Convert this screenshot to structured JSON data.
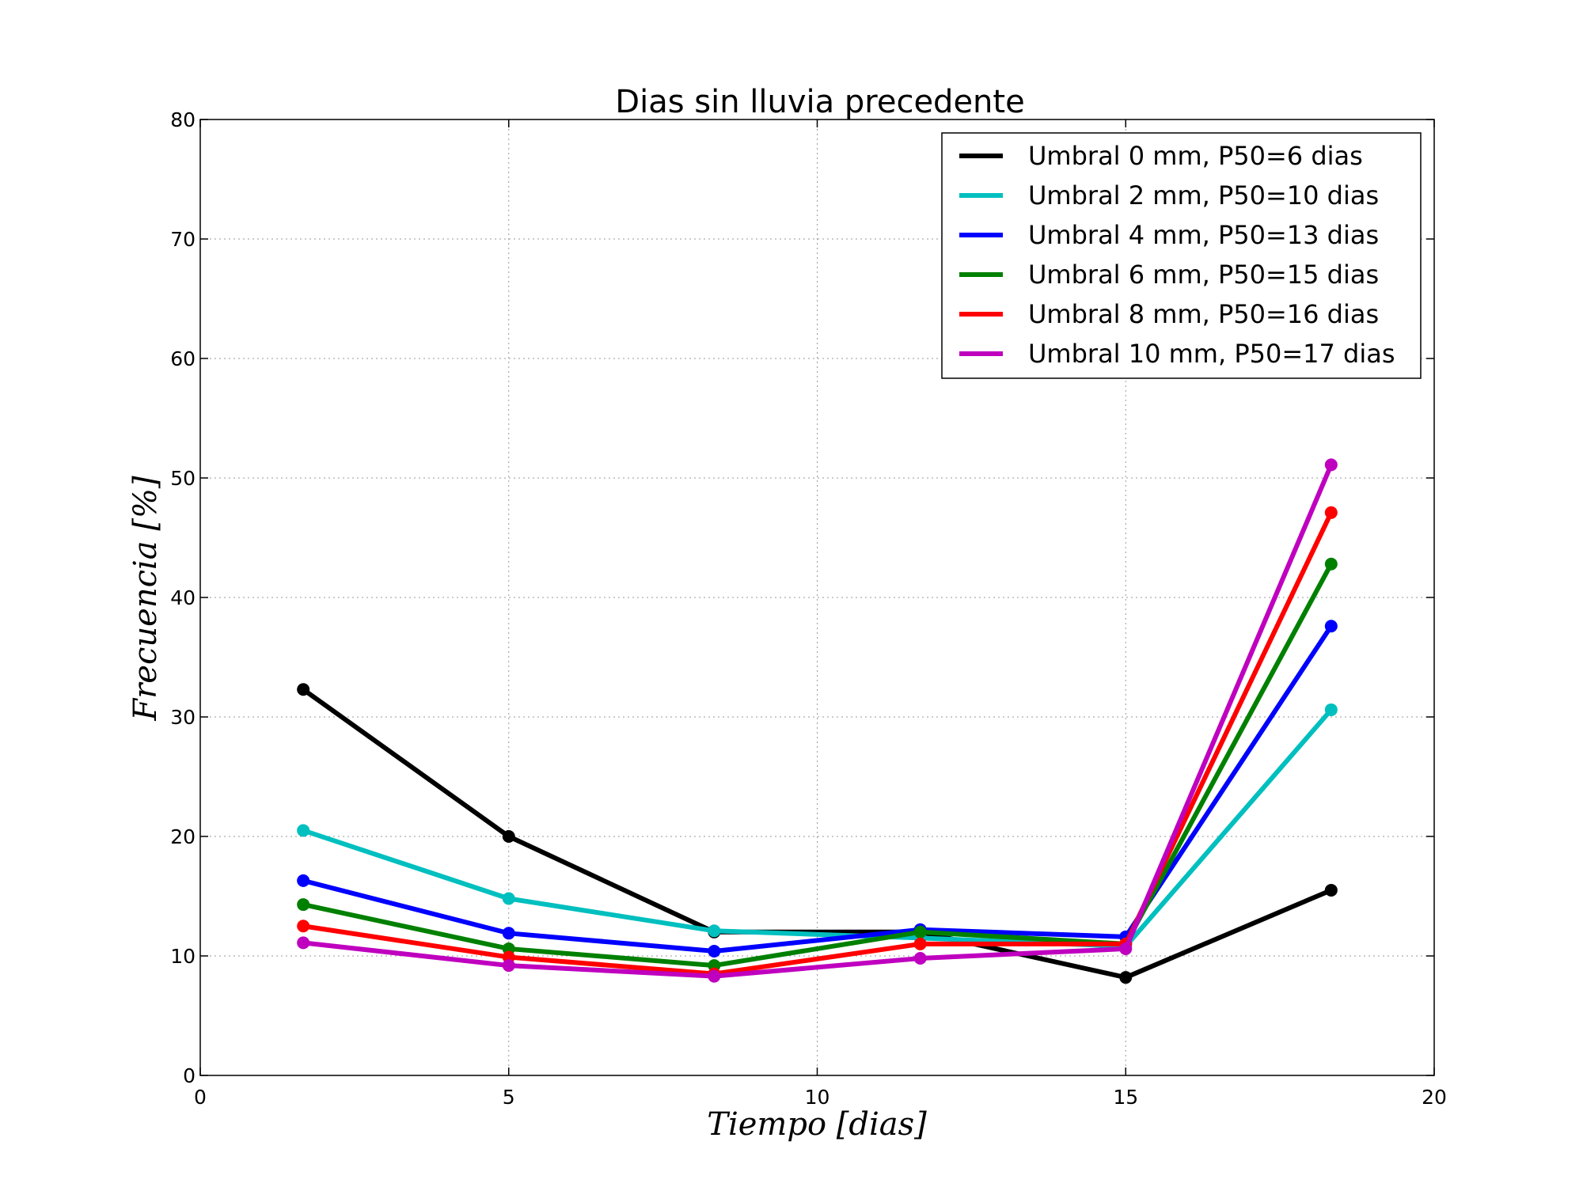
{
  "chart_data": {
    "type": "line",
    "title": "Dias sin lluvia precedente",
    "xlabel": "Tiempo [dias]",
    "ylabel": "Frecuencia [%]",
    "xlim": [
      0,
      20
    ],
    "ylim": [
      0,
      80
    ],
    "xticks": [
      0,
      5,
      10,
      15,
      20
    ],
    "yticks": [
      0,
      10,
      20,
      30,
      40,
      50,
      60,
      70,
      80
    ],
    "grid": true,
    "legend_position": "top-right",
    "x": [
      1.67,
      5.0,
      8.33,
      11.67,
      15.0,
      18.33
    ],
    "series": [
      {
        "name": "Umbral 0 mm, P50=6 dias",
        "color": "#000000",
        "values": [
          32.3,
          20.0,
          12.0,
          12.0,
          8.2,
          15.5
        ]
      },
      {
        "name": "Umbral 2 mm, P50=10 dias",
        "color": "#00bfbf",
        "values": [
          20.5,
          14.8,
          12.1,
          11.5,
          10.8,
          30.6
        ]
      },
      {
        "name": "Umbral 4 mm, P50=13 dias",
        "color": "#0000ff",
        "values": [
          16.3,
          11.9,
          10.4,
          12.2,
          11.6,
          37.6
        ]
      },
      {
        "name": "Umbral 6 mm, P50=15 dias",
        "color": "#008000",
        "values": [
          14.3,
          10.6,
          9.2,
          12.0,
          11.0,
          42.8
        ]
      },
      {
        "name": "Umbral 8 mm, P50=16 dias",
        "color": "#ff0000",
        "values": [
          12.5,
          9.9,
          8.5,
          11.0,
          11.0,
          47.1
        ]
      },
      {
        "name": "Umbral 10 mm, P50=17 dias",
        "color": "#bf00bf",
        "values": [
          11.1,
          9.2,
          8.3,
          9.8,
          10.6,
          51.1
        ]
      }
    ]
  }
}
